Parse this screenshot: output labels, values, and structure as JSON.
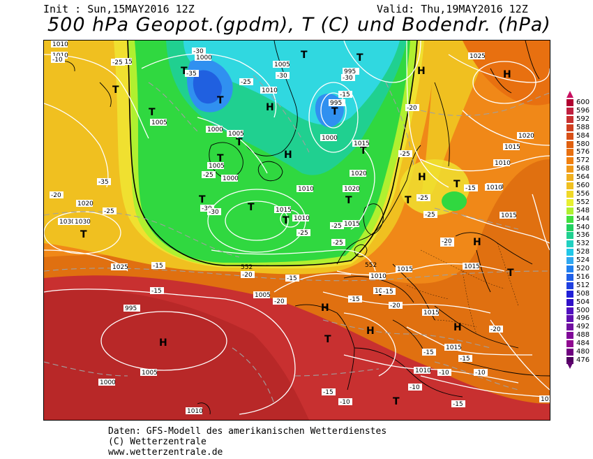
{
  "header": {
    "init": "Init : Sun,15MAY2016 12Z",
    "valid": "Valid: Thu,19MAY2016 12Z",
    "title": "500 hPa Geopot.(gpdm), T (C) und Bodendr. (hPa)"
  },
  "footer": {
    "line1": "Daten: GFS-Modell des amerikanischen Wetterdienstes",
    "line2": "(C) Wetterzentrale",
    "line3": "www.wetterzentrale.de"
  },
  "legend": {
    "labels": [
      "600",
      "596",
      "592",
      "588",
      "584",
      "580",
      "576",
      "572",
      "568",
      "564",
      "560",
      "556",
      "552",
      "548",
      "544",
      "540",
      "536",
      "532",
      "528",
      "524",
      "520",
      "516",
      "512",
      "508",
      "504",
      "500",
      "496",
      "492",
      "488",
      "484",
      "480",
      "476"
    ],
    "colors": [
      "#b00030",
      "#c02040",
      "#c83030",
      "#d04020",
      "#d85018",
      "#e06010",
      "#e87010",
      "#f08010",
      "#f09818",
      "#f0b020",
      "#f0c020",
      "#f0d828",
      "#e8f030",
      "#b0f030",
      "#40e040",
      "#20d060",
      "#20d090",
      "#20d0c0",
      "#20c8e8",
      "#30a8f0",
      "#2080f0",
      "#2060e8",
      "#2040e0",
      "#2020d8",
      "#3010c8",
      "#5010c0",
      "#6010b0",
      "#7010a0",
      "#800898",
      "#900890",
      "#700080",
      "#500060"
    ]
  },
  "map": {
    "pressure_systems": [
      {
        "letter": "H",
        "kind": "high"
      },
      {
        "letter": "H",
        "kind": "high"
      },
      {
        "letter": "H",
        "kind": "high"
      },
      {
        "letter": "H",
        "kind": "high"
      },
      {
        "letter": "H",
        "kind": "high"
      },
      {
        "letter": "H",
        "kind": "high"
      },
      {
        "letter": "H",
        "kind": "high"
      },
      {
        "letter": "H",
        "kind": "high"
      },
      {
        "letter": "H",
        "kind": "high"
      },
      {
        "letter": "H",
        "kind": "high"
      },
      {
        "letter": "T",
        "kind": "low"
      },
      {
        "letter": "T",
        "kind": "low"
      },
      {
        "letter": "T",
        "kind": "low"
      },
      {
        "letter": "T",
        "kind": "low"
      },
      {
        "letter": "T",
        "kind": "low"
      },
      {
        "letter": "T",
        "kind": "low"
      },
      {
        "letter": "T",
        "kind": "low"
      },
      {
        "letter": "T",
        "kind": "low"
      },
      {
        "letter": "T",
        "kind": "low"
      },
      {
        "letter": "T",
        "kind": "low"
      },
      {
        "letter": "T",
        "kind": "low"
      },
      {
        "letter": "T",
        "kind": "low"
      },
      {
        "letter": "T",
        "kind": "low"
      },
      {
        "letter": "T",
        "kind": "low"
      },
      {
        "letter": "T",
        "kind": "low"
      },
      {
        "letter": "T",
        "kind": "low"
      },
      {
        "letter": "T",
        "kind": "low"
      },
      {
        "letter": "T",
        "kind": "low"
      },
      {
        "letter": "T",
        "kind": "low"
      },
      {
        "letter": "T",
        "kind": "low"
      },
      {
        "letter": "T",
        "kind": "low"
      }
    ],
    "isobar_labels": [
      "1010",
      "1010",
      "1015",
      "1000",
      "1005",
      "1010",
      "995",
      "1005",
      "1000",
      "1005",
      "995",
      "1000",
      "1000",
      "1005",
      "1010",
      "1020",
      "1015",
      "1010",
      "1020",
      "1030",
      "1030",
      "1025",
      "1005",
      "995",
      "1000",
      "1005",
      "1010",
      "1015",
      "1020",
      "1015",
      "1025",
      "1030",
      "1020",
      "1015",
      "1010",
      "1010",
      "1015",
      "1015",
      "1015",
      "1010",
      "1015",
      "1020",
      "1015",
      "1010",
      "1015"
    ],
    "temperature_labels": [
      "-10",
      "-25",
      "-30",
      "-35",
      "-25",
      "-30",
      "-30",
      "-15",
      "-20",
      "-25",
      "-25",
      "-30",
      "-30",
      "-25",
      "-25",
      "-25",
      "-25",
      "-25",
      "-20",
      "-35",
      "-20",
      "-25",
      "-20",
      "-15",
      "-15",
      "-20",
      "-15",
      "-20",
      "-15",
      "-15",
      "-20",
      "-15",
      "-10",
      "-10",
      "-15",
      "-15",
      "-10",
      "-10",
      "-15",
      "-20",
      "-15"
    ],
    "geopotential_labels": [
      "552",
      "552"
    ],
    "colors": {
      "frame_bg": "#e07010",
      "deep_red": "#c83030",
      "dark_red": "#b82828",
      "orange": "#e87010",
      "light_orange": "#f08818",
      "yellow": "#f0c020",
      "pale_yellow": "#f0e030",
      "lime": "#b0f030",
      "green": "#30d840",
      "teal": "#20d090",
      "cyan": "#30d8e0",
      "blue": "#3090f0",
      "deep_blue": "#2060e0",
      "coast": "#000000",
      "isobar": "#ffffff"
    }
  }
}
